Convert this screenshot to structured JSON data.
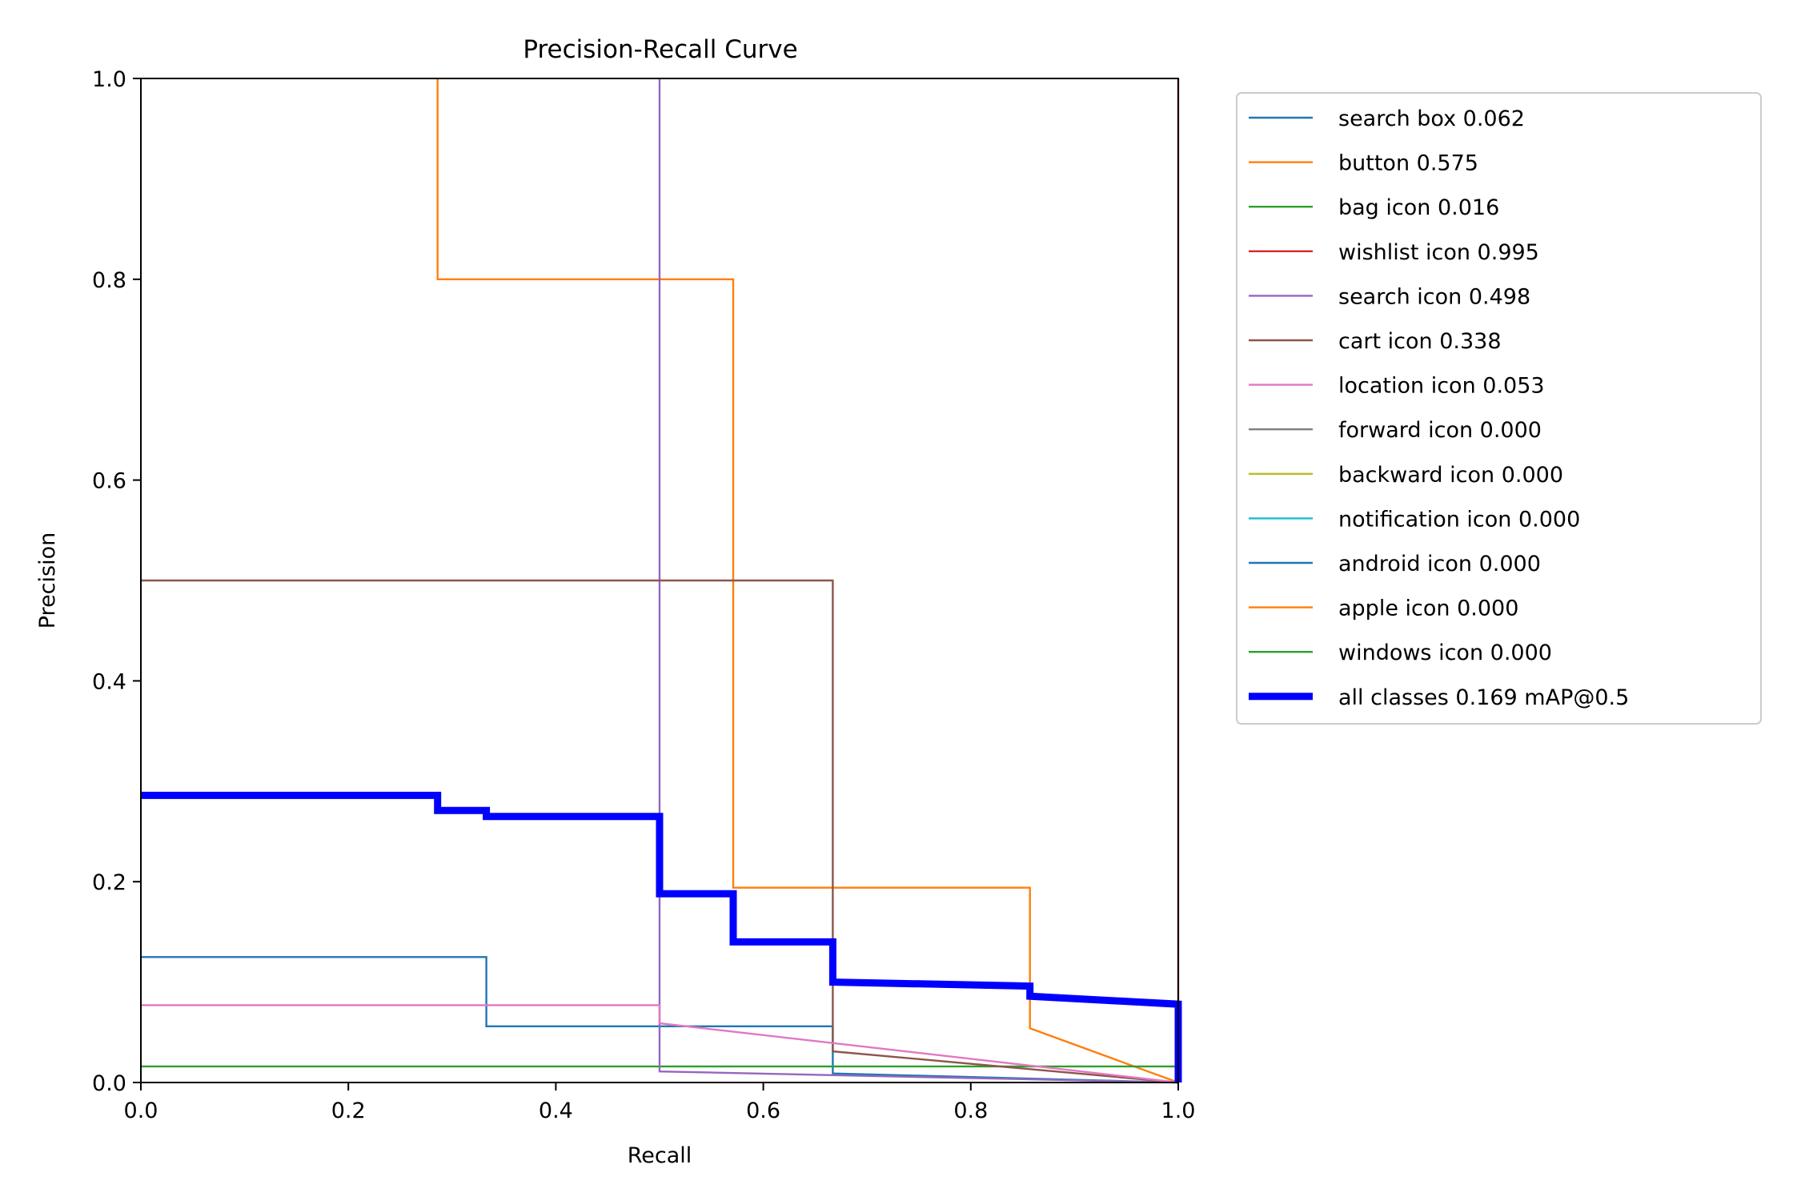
{
  "chart_data": {
    "type": "line",
    "title": "Precision-Recall Curve",
    "xlabel": "Recall",
    "ylabel": "Precision",
    "xlim": [
      0,
      1
    ],
    "ylim": [
      0,
      1
    ],
    "xticks": [
      "0.0",
      "0.2",
      "0.4",
      "0.6",
      "0.8",
      "1.0"
    ],
    "yticks": [
      "0.0",
      "0.2",
      "0.4",
      "0.6",
      "0.8",
      "1.0"
    ],
    "grid": false,
    "legend_position": "outside-right-top",
    "series": [
      {
        "name": "search box 0.062",
        "color": "#1f77b4",
        "width": 1,
        "x": [
          0,
          0.333,
          0.333,
          0.667,
          0.667,
          1.0
        ],
        "y": [
          0.125,
          0.125,
          0.056,
          0.056,
          0.009,
          0.0
        ]
      },
      {
        "name": "button 0.575",
        "color": "#ff7f0e",
        "width": 1,
        "x": [
          0.286,
          0.286,
          0.571,
          0.571,
          0.857,
          0.857,
          1.0
        ],
        "y": [
          1.0,
          0.8,
          0.8,
          0.194,
          0.194,
          0.054,
          0.0
        ]
      },
      {
        "name": "bag icon 0.016",
        "color": "#2ca02c",
        "width": 1,
        "x": [
          0,
          1.0
        ],
        "y": [
          0.016,
          0.016
        ]
      },
      {
        "name": "wishlist icon 0.995",
        "color": "#d62728",
        "width": 1,
        "x": [
          1.0,
          1.0
        ],
        "y": [
          1.0,
          0.0
        ]
      },
      {
        "name": "search icon 0.498",
        "color": "#9467bd",
        "width": 1,
        "x": [
          0.5,
          0.5,
          1.0
        ],
        "y": [
          1.0,
          0.011,
          0.0
        ]
      },
      {
        "name": "cart icon 0.338",
        "color": "#8c564b",
        "width": 1,
        "x": [
          0,
          0.667,
          0.667,
          1.0
        ],
        "y": [
          0.5,
          0.5,
          0.031,
          0.0
        ]
      },
      {
        "name": "location icon 0.053",
        "color": "#e377c2",
        "width": 1,
        "x": [
          0,
          0.5,
          0.5,
          1.0
        ],
        "y": [
          0.077,
          0.077,
          0.059,
          0.0
        ]
      },
      {
        "name": "forward icon 0.000",
        "color": "#7f7f7f",
        "width": 1,
        "x": [],
        "y": []
      },
      {
        "name": "backward icon 0.000",
        "color": "#bcbd22",
        "width": 1,
        "x": [],
        "y": []
      },
      {
        "name": "notification icon 0.000",
        "color": "#17becf",
        "width": 1,
        "x": [],
        "y": []
      },
      {
        "name": "android icon 0.000",
        "color": "#1f77b4",
        "width": 1,
        "x": [],
        "y": []
      },
      {
        "name": "apple icon 0.000",
        "color": "#ff7f0e",
        "width": 1,
        "x": [],
        "y": []
      },
      {
        "name": "windows icon 0.000",
        "color": "#2ca02c",
        "width": 1,
        "x": [],
        "y": []
      },
      {
        "name": "all classes 0.169 mAP@0.5",
        "color": "#0000ff",
        "width": 3,
        "x": [
          0,
          0.286,
          0.286,
          0.333,
          0.333,
          0.5,
          0.5,
          0.571,
          0.571,
          0.667,
          0.667,
          0.857,
          0.857,
          1.0,
          1.0
        ],
        "y": [
          0.286,
          0.286,
          0.271,
          0.271,
          0.265,
          0.265,
          0.188,
          0.188,
          0.14,
          0.14,
          0.1,
          0.096,
          0.086,
          0.078,
          0.0
        ]
      }
    ]
  }
}
